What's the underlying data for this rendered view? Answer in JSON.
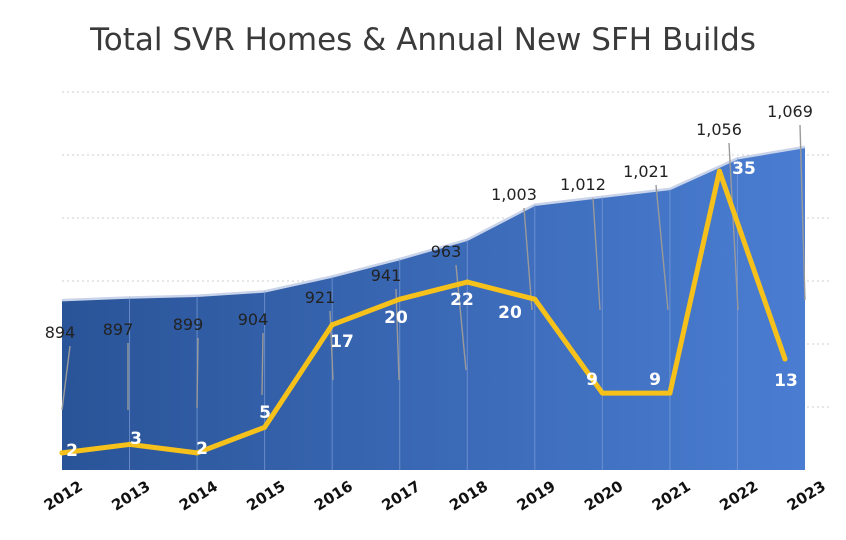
{
  "chart_data": {
    "type": "area",
    "title": "Total SVR Homes & Annual New SFH Builds",
    "categories": [
      "2012",
      "2013",
      "2014",
      "2015",
      "2016",
      "2017",
      "2018",
      "2019",
      "2020",
      "2021",
      "2022",
      "2023"
    ],
    "series": [
      {
        "chart_type": "area",
        "values": [
          894,
          897,
          899,
          904,
          921,
          941,
          963,
          1003,
          1012,
          1021,
          1056,
          1069
        ],
        "labels": [
          "894",
          "897",
          "899",
          "904",
          "921",
          "941",
          "963",
          "1,003",
          "1,012",
          "1,021",
          "1,056",
          "1,069"
        ],
        "color": "#3f6fc4"
      },
      {
        "chart_type": "line",
        "values": [
          2,
          3,
          2,
          5,
          17,
          20,
          22,
          20,
          9,
          9,
          35,
          13
        ],
        "labels": [
          "2",
          "3",
          "2",
          "5",
          "17",
          "20",
          "22",
          "20",
          "9",
          "9",
          "35",
          "13"
        ],
        "color": "#f5c11a"
      }
    ],
    "grid": true,
    "legend": "none"
  }
}
